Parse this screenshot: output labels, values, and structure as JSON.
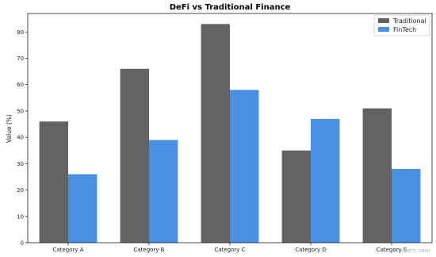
{
  "chart_data": {
    "type": "bar",
    "title": "DeFi vs Traditional Finance",
    "xlabel": "",
    "ylabel": "Value (%)",
    "categories": [
      "Category A",
      "Category B",
      "Category C",
      "Category D",
      "Category E"
    ],
    "series": [
      {
        "name": "Traditional",
        "values": [
          46,
          66,
          83,
          35,
          51
        ],
        "color": "#5f5f5f"
      },
      {
        "name": "FinTech",
        "values": [
          26,
          39,
          58,
          47,
          28
        ],
        "color": "#4a90e2"
      }
    ],
    "ylim": [
      0,
      87
    ],
    "yticks": [
      0,
      10,
      20,
      30,
      40,
      50,
      60,
      70,
      80
    ],
    "grid": false,
    "legend": "top-right",
    "watermark": "[SYNTHETIC DATA]"
  }
}
